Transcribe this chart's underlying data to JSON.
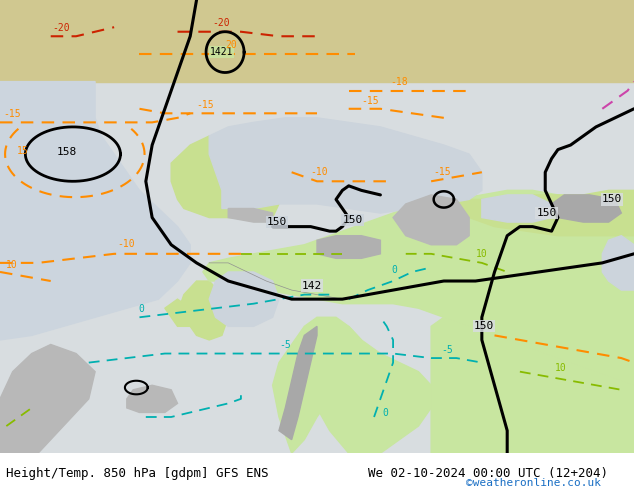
{
  "title_left": "Height/Temp. 850 hPa [gdpm] GFS ENS",
  "title_right": "We 02-10-2024 00:00 UTC (12+204)",
  "credit": "©weatheronline.co.uk",
  "bg_color": "#ffffff",
  "footer_font_size": 9,
  "credit_color": "#1a6fc4",
  "fig_width": 6.34,
  "fig_height": 4.9,
  "dpi": 100
}
